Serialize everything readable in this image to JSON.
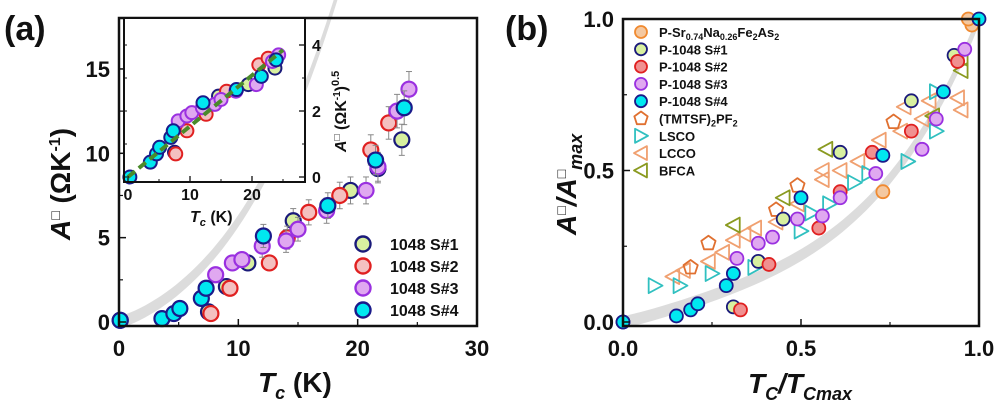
{
  "chart_data": [
    {
      "id": "a",
      "panel_label": "(a)",
      "type": "scatter",
      "xlabel": "Tc (K)",
      "xlabel_main": "T",
      "xlabel_sub": "c",
      "xlabel_unit": " (K)",
      "ylabel": "A□ (ΩK-1)",
      "ylabel_main": "A",
      "ylabel_box": "□",
      "ylabel_unit": " (ΩK",
      "ylabel_sup": "-1",
      "ylabel_close": ")",
      "xlim": [
        0,
        30
      ],
      "ylim": [
        0,
        18
      ],
      "xticks": [
        "0",
        "10",
        "20",
        "30"
      ],
      "xtick_values": [
        0,
        10,
        20,
        30
      ],
      "yticks": [
        "0",
        "5",
        "10",
        "15"
      ],
      "ytick_values": [
        0,
        5,
        10,
        15
      ],
      "guide_curve": {
        "description": "gray shaded power-law guide",
        "x_range": [
          0,
          26
        ],
        "color": "#d8d8d8"
      },
      "legend_position": "bottom-right",
      "series": [
        {
          "name": "1048 S#1",
          "fill": "#d8f0a0",
          "edge": "#1a1a7a",
          "points": [
            [
              0.1,
              0.1
            ],
            [
              7.5,
              0.6
            ],
            [
              9.0,
              2.1
            ],
            [
              10.8,
              3.5
            ],
            [
              14.6,
              6.0
            ],
            [
              19.4,
              7.8
            ],
            [
              21.7,
              9.1
            ],
            [
              23.7,
              10.8
            ]
          ]
        },
        {
          "name": "1048 S#2",
          "fill": "#f4c0c0",
          "edge": "#e02020",
          "points": [
            [
              7.7,
              0.5
            ],
            [
              9.3,
              2.0
            ],
            [
              12.6,
              3.5
            ],
            [
              14.1,
              5.0
            ],
            [
              15.9,
              6.5
            ],
            [
              18.5,
              7.5
            ],
            [
              21.1,
              10.2
            ],
            [
              22.6,
              11.8
            ]
          ]
        },
        {
          "name": "1048 S#3",
          "fill": "#e0a8f0",
          "edge": "#9a30e0",
          "points": [
            [
              8.1,
              2.8
            ],
            [
              9.5,
              3.5
            ],
            [
              10.3,
              3.7
            ],
            [
              12.0,
              4.5
            ],
            [
              14.0,
              4.8
            ],
            [
              15.0,
              5.5
            ],
            [
              17.4,
              6.6
            ],
            [
              20.7,
              7.8
            ],
            [
              21.7,
              9.2
            ],
            [
              23.3,
              12.5
            ],
            [
              24.3,
              13.8
            ]
          ]
        },
        {
          "name": "1048 S#4",
          "fill": "#00e8f0",
          "edge": "#1a1a8a",
          "points": [
            [
              0.1,
              0.1
            ],
            [
              3.6,
              0.2
            ],
            [
              4.6,
              0.5
            ],
            [
              5.1,
              0.8
            ],
            [
              6.9,
              1.4
            ],
            [
              7.3,
              2.0
            ],
            [
              12.1,
              5.1
            ],
            [
              17.5,
              6.9
            ],
            [
              21.5,
              9.6
            ],
            [
              23.9,
              12.7
            ]
          ]
        }
      ],
      "error_bars": {
        "color": "#888888",
        "present": true
      }
    },
    {
      "id": "a-inset",
      "type": "scatter",
      "xlabel": "Tc (K)",
      "xlabel_main": "T",
      "xlabel_sub": "c",
      "xlabel_unit": " (K)",
      "ylabel": "A□ (ΩK-1)0.5",
      "ylabel_main": "A",
      "ylabel_box": "□",
      "ylabel_unit": " (ΩK",
      "ylabel_sup": "-1",
      "ylabel_close": ")",
      "ylabel_sup2": "0.5",
      "xlim": [
        0,
        28
      ],
      "ylim": [
        -0.2,
        4.6
      ],
      "xticks": [
        "0",
        "10",
        "20"
      ],
      "xtick_values": [
        0,
        10,
        20
      ],
      "yticks": [
        "0",
        "2",
        "4"
      ],
      "ytick_values": [
        0,
        2,
        4
      ],
      "yaxis_side": "right",
      "fit_line": {
        "style": "dashed",
        "color": "#4a8a2a",
        "from": [
          0,
          0
        ],
        "to": [
          25,
          3.85
        ]
      },
      "series": [
        {
          "name": "1048 S#1",
          "points": [
            [
              7.5,
              0.75
            ],
            [
              14.6,
              2.45
            ],
            [
              19.4,
              2.8
            ],
            [
              23.7,
              3.3
            ]
          ]
        },
        {
          "name": "1048 S#2",
          "points": [
            [
              7.7,
              0.7
            ],
            [
              9.5,
              1.4
            ],
            [
              12.6,
              1.9
            ],
            [
              15.9,
              2.6
            ],
            [
              21.1,
              3.4
            ],
            [
              22.6,
              3.6
            ]
          ]
        },
        {
          "name": "1048 S#3",
          "points": [
            [
              8.1,
              1.7
            ],
            [
              9.5,
              1.85
            ],
            [
              10.3,
              1.95
            ],
            [
              12.0,
              2.1
            ],
            [
              14.0,
              2.2
            ],
            [
              15.0,
              2.35
            ],
            [
              17.4,
              2.6
            ],
            [
              20.7,
              2.8
            ],
            [
              23.3,
              3.5
            ],
            [
              24.3,
              3.7
            ]
          ]
        },
        {
          "name": "1048 S#4",
          "points": [
            [
              0.3,
              0.0
            ],
            [
              3.6,
              0.45
            ],
            [
              4.6,
              0.7
            ],
            [
              5.1,
              0.9
            ],
            [
              6.9,
              1.2
            ],
            [
              7.3,
              1.4
            ],
            [
              12.1,
              2.25
            ],
            [
              17.5,
              2.65
            ],
            [
              21.5,
              3.05
            ],
            [
              23.9,
              3.55
            ]
          ]
        }
      ]
    },
    {
      "id": "b",
      "panel_label": "(b)",
      "type": "scatter",
      "xlabel": "TC/TCmax",
      "xlabel_main1": "T",
      "xlabel_sub1": "C",
      "xlabel_slash": "/",
      "xlabel_main2": "T",
      "xlabel_sub2": "Cmax",
      "ylabel": "A□/A□max",
      "ylabel_main": "A",
      "ylabel_box": "□",
      "ylabel_slash": "/",
      "ylabel_main2": "A",
      "ylabel_sub": "max",
      "xlim": [
        0,
        1.0
      ],
      "ylim": [
        0,
        1.0
      ],
      "xticks": [
        "0.0",
        "0.5",
        "1.0"
      ],
      "xtick_values": [
        0,
        0.5,
        1.0
      ],
      "yticks": [
        "0.0",
        "0.5",
        "1.0"
      ],
      "ytick_values": [
        0,
        0.5,
        1.0
      ],
      "guide_curve": {
        "description": "gray shaded guide",
        "x_range": [
          0,
          1.0
        ],
        "color": "#d8d8d8"
      },
      "legend_position": "top-left",
      "series": [
        {
          "name": "P-Sr0.74Na0.26Fe2As2",
          "name_parts": [
            "P-Sr",
            "0.74",
            "Na",
            "0.26",
            "Fe",
            "2",
            "As",
            "2"
          ],
          "marker": "circle",
          "fill": "#f4c8a0",
          "edge": "#f08a30",
          "points": [
            [
              0.73,
              0.43
            ],
            [
              0.98,
              0.98
            ],
            [
              0.97,
              1.0
            ]
          ]
        },
        {
          "name": "P-1048 S#1",
          "marker": "circle",
          "fill": "#d8f0a0",
          "edge": "#1a1a7a",
          "points": [
            [
              0.0,
              0.0
            ],
            [
              0.31,
              0.05
            ],
            [
              0.38,
              0.2
            ],
            [
              0.45,
              0.34
            ],
            [
              0.61,
              0.56
            ],
            [
              0.81,
              0.73
            ],
            [
              0.93,
              0.88
            ]
          ]
        },
        {
          "name": "P-1048 S#2",
          "marker": "circle",
          "fill": "#f09090",
          "edge": "#e02020",
          "points": [
            [
              0.33,
              0.04
            ],
            [
              0.41,
              0.19
            ],
            [
              0.55,
              0.31
            ],
            [
              0.61,
              0.43
            ],
            [
              0.7,
              0.56
            ],
            [
              0.81,
              0.63
            ],
            [
              0.94,
              0.86
            ]
          ]
        },
        {
          "name": "P-1048 S#3",
          "marker": "circle",
          "fill": "#e0a8f0",
          "edge": "#9a30e0",
          "points": [
            [
              0.32,
              0.21
            ],
            [
              0.38,
              0.26
            ],
            [
              0.42,
              0.28
            ],
            [
              0.49,
              0.34
            ],
            [
              0.56,
              0.35
            ],
            [
              0.61,
              0.41
            ],
            [
              0.71,
              0.49
            ],
            [
              0.84,
              0.57
            ],
            [
              0.88,
              0.67
            ],
            [
              0.96,
              0.9
            ]
          ]
        },
        {
          "name": "P-1048 S#4",
          "marker": "circle",
          "fill": "#00e8f0",
          "edge": "#1a1a8a",
          "points": [
            [
              0.0,
              0.0
            ],
            [
              0.15,
              0.02
            ],
            [
              0.19,
              0.04
            ],
            [
              0.21,
              0.06
            ],
            [
              0.29,
              0.12
            ],
            [
              0.31,
              0.16
            ],
            [
              0.5,
              0.41
            ],
            [
              0.73,
              0.55
            ],
            [
              0.9,
              0.76
            ],
            [
              1.0,
              1.0
            ]
          ]
        },
        {
          "name": "(TMTSF)2PF2",
          "name_parts": [
            "(TMTSF)",
            "2",
            "PF",
            "2"
          ],
          "marker": "pentagon",
          "fill": "none",
          "edge": "#e07030",
          "points": [
            [
              0.19,
              0.18
            ],
            [
              0.24,
              0.26
            ],
            [
              0.43,
              0.37
            ],
            [
              0.49,
              0.45
            ],
            [
              0.76,
              0.66
            ]
          ]
        },
        {
          "name": "LSCO",
          "marker": "triangle-right",
          "fill": "none",
          "edge": "#30c0c0",
          "points": [
            [
              0.09,
              0.12
            ],
            [
              0.16,
              0.12
            ],
            [
              0.25,
              0.16
            ],
            [
              0.37,
              0.18
            ],
            [
              0.5,
              0.3
            ],
            [
              0.53,
              0.36
            ],
            [
              0.58,
              0.39
            ],
            [
              0.65,
              0.46
            ],
            [
              0.69,
              0.49
            ],
            [
              0.8,
              0.53
            ],
            [
              0.88,
              0.63
            ],
            [
              0.88,
              0.76
            ]
          ]
        },
        {
          "name": "LCCO",
          "marker": "triangle-left",
          "fill": "none",
          "edge": "#f0a070",
          "points": [
            [
              0.14,
              0.15
            ],
            [
              0.17,
              0.17
            ],
            [
              0.24,
              0.2
            ],
            [
              0.28,
              0.23
            ],
            [
              0.31,
              0.27
            ],
            [
              0.34,
              0.29
            ],
            [
              0.37,
              0.31
            ],
            [
              0.43,
              0.33
            ],
            [
              0.49,
              0.39
            ],
            [
              0.56,
              0.47
            ],
            [
              0.56,
              0.5
            ],
            [
              0.61,
              0.5
            ],
            [
              0.66,
              0.53
            ],
            [
              0.72,
              0.6
            ],
            [
              0.78,
              0.63
            ],
            [
              0.79,
              0.71
            ],
            [
              0.84,
              0.67
            ],
            [
              0.86,
              0.73
            ],
            [
              0.94,
              0.74
            ],
            [
              0.95,
              0.7
            ]
          ]
        },
        {
          "name": "BFCA",
          "marker": "triangle-left",
          "fill": "none",
          "edge": "#8a9a20",
          "points": [
            [
              0.31,
              0.32
            ],
            [
              0.45,
              0.41
            ],
            [
              0.57,
              0.57
            ],
            [
              0.87,
              0.68
            ],
            [
              0.95,
              0.83
            ],
            [
              0.95,
              0.87
            ]
          ]
        }
      ]
    }
  ]
}
